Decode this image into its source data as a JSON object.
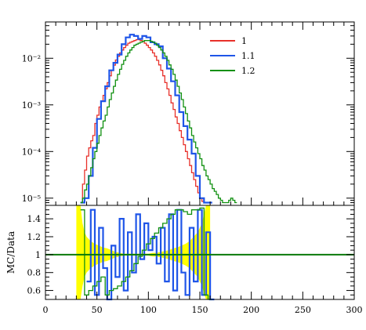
{
  "chart_data": [
    {
      "type": "line",
      "panel": "main",
      "title": "",
      "xlabel": "",
      "ylabel": "",
      "xlim": [
        0,
        300
      ],
      "ylim": [
        7e-06,
        0.06
      ],
      "yscale": "log",
      "yticks": [
        {
          "value": 1e-05,
          "label": "10⁻⁵"
        },
        {
          "value": 0.0001,
          "label": "10⁻⁴"
        },
        {
          "value": 0.001,
          "label": "10⁻³"
        },
        {
          "value": 0.01,
          "label": "10⁻²"
        }
      ],
      "legend": {
        "position": "top-right"
      },
      "series": [
        {
          "name": "1",
          "color": "#e8302a",
          "x": [
            34,
            36,
            38,
            40,
            42,
            44,
            46,
            48,
            50,
            52,
            54,
            56,
            58,
            60,
            62,
            64,
            66,
            68,
            70,
            72,
            74,
            76,
            78,
            80,
            82,
            84,
            86,
            88,
            90,
            92,
            94,
            96,
            98,
            100,
            102,
            104,
            106,
            108,
            110,
            112,
            114,
            116,
            118,
            120,
            122,
            124,
            126,
            128,
            130,
            132,
            134,
            136,
            138,
            140,
            142,
            144,
            146,
            148,
            150,
            152,
            154
          ],
          "values": [
            8e-06,
            2e-05,
            4e-05,
            8e-05,
            0.00012,
            0.00017,
            0.00022,
            0.0004,
            0.0006,
            0.0009,
            0.0012,
            0.0016,
            0.0022,
            0.003,
            0.0042,
            0.0055,
            0.0071,
            0.0092,
            0.011,
            0.013,
            0.015,
            0.017,
            0.019,
            0.021,
            0.022,
            0.023,
            0.024,
            0.025,
            0.025,
            0.024,
            0.023,
            0.021,
            0.019,
            0.017,
            0.015,
            0.013,
            0.011,
            0.009,
            0.0072,
            0.0055,
            0.0042,
            0.003,
            0.0022,
            0.0016,
            0.0011,
            0.0008,
            0.00055,
            0.0004,
            0.00028,
            0.0002,
            0.00014,
            0.0001,
            7e-05,
            5e-05,
            3.5e-05,
            2.5e-05,
            1.8e-05,
            1.3e-05,
            1e-05,
            8.5e-06,
            8e-06
          ]
        },
        {
          "name": "1.1",
          "color": "#1f55e8",
          "x": [
            34,
            38,
            42,
            46,
            50,
            54,
            58,
            62,
            66,
            70,
            74,
            78,
            82,
            86,
            90,
            94,
            98,
            102,
            106,
            110,
            114,
            118,
            122,
            126,
            130,
            134,
            138,
            142,
            146,
            150,
            154,
            158
          ],
          "values": [
            8e-06,
            1e-05,
            3e-05,
            0.00012,
            0.0005,
            0.0012,
            0.0025,
            0.0055,
            0.008,
            0.012,
            0.02,
            0.028,
            0.032,
            0.03,
            0.026,
            0.03,
            0.028,
            0.022,
            0.02,
            0.018,
            0.01,
            0.006,
            0.0032,
            0.0016,
            0.0007,
            0.00035,
            0.00018,
            9e-05,
            3e-05,
            1e-05,
            8e-06,
            8e-06
          ]
        },
        {
          "name": "1.2",
          "color": "#109010",
          "x": [
            34,
            36,
            38,
            40,
            42,
            44,
            46,
            48,
            50,
            52,
            54,
            56,
            58,
            60,
            62,
            64,
            66,
            68,
            70,
            72,
            74,
            76,
            78,
            80,
            82,
            84,
            86,
            88,
            90,
            92,
            94,
            96,
            98,
            100,
            102,
            104,
            106,
            108,
            110,
            112,
            114,
            116,
            118,
            120,
            122,
            124,
            126,
            128,
            130,
            132,
            134,
            136,
            138,
            140,
            142,
            144,
            146,
            148,
            150,
            152,
            154,
            156,
            158,
            160,
            162,
            164,
            166,
            168,
            170,
            172,
            174,
            176,
            178,
            180,
            182,
            184
          ],
          "values": [
            8e-06,
            1e-05,
            1.5e-05,
            2e-05,
            3e-05,
            4.5e-05,
            7e-05,
            0.0001,
            0.00015,
            0.00022,
            0.00032,
            0.00045,
            0.0006,
            0.0009,
            0.0013,
            0.0018,
            0.0025,
            0.0034,
            0.0045,
            0.0058,
            0.0074,
            0.009,
            0.011,
            0.013,
            0.015,
            0.017,
            0.019,
            0.02,
            0.021,
            0.022,
            0.023,
            0.024,
            0.024,
            0.024,
            0.023,
            0.022,
            0.021,
            0.019,
            0.017,
            0.015,
            0.013,
            0.011,
            0.009,
            0.0072,
            0.0058,
            0.0045,
            0.0034,
            0.0025,
            0.0018,
            0.0013,
            0.0009,
            0.00065,
            0.00045,
            0.00032,
            0.00022,
            0.00016,
            0.00012,
            9e-05,
            7e-05,
            5e-05,
            4e-05,
            3e-05,
            2.5e-05,
            2e-05,
            1.6e-05,
            1.4e-05,
            1.2e-05,
            1e-05,
            9e-06,
            8e-06,
            8e-06,
            8e-06,
            9e-06,
            1e-05,
            9e-06,
            8e-06
          ]
        }
      ]
    },
    {
      "type": "line",
      "panel": "ratio",
      "title": "",
      "xlabel": "",
      "ylabel": "MC/Data",
      "xlim": [
        0,
        300
      ],
      "ylim": [
        0.5,
        1.55
      ],
      "xticks": [
        0,
        50,
        100,
        150,
        200,
        250,
        300
      ],
      "yticks": [
        0.6,
        0.8,
        1,
        1.2,
        1.4
      ],
      "reference_line": 1,
      "uncertainty_band": {
        "color": "#ffff00",
        "x": [
          30,
          34,
          36,
          38,
          40,
          44,
          48,
          52,
          56,
          60,
          64,
          68,
          72,
          76,
          80,
          84,
          88,
          92,
          96,
          100,
          104,
          108,
          112,
          116,
          120,
          124,
          128,
          132,
          136,
          140,
          144,
          148,
          152,
          156,
          160
        ],
        "lower": [
          0.5,
          0.5,
          0.65,
          0.75,
          0.8,
          0.85,
          0.88,
          0.9,
          0.92,
          0.93,
          0.95,
          0.97,
          0.98,
          0.99,
          0.99,
          0.99,
          0.99,
          0.99,
          0.99,
          0.99,
          0.98,
          0.98,
          0.97,
          0.96,
          0.95,
          0.93,
          0.92,
          0.9,
          0.88,
          0.85,
          0.8,
          0.75,
          0.65,
          0.5,
          0.5
        ],
        "upper": [
          1.55,
          1.55,
          1.35,
          1.25,
          1.2,
          1.15,
          1.12,
          1.1,
          1.08,
          1.07,
          1.05,
          1.03,
          1.02,
          1.01,
          1.01,
          1.01,
          1.01,
          1.01,
          1.01,
          1.01,
          1.02,
          1.02,
          1.03,
          1.04,
          1.05,
          1.07,
          1.08,
          1.1,
          1.12,
          1.15,
          1.2,
          1.25,
          1.35,
          1.55,
          1.55
        ]
      },
      "series": [
        {
          "name": "1.1",
          "color": "#1f55e8",
          "x": [
            40,
            44,
            48,
            52,
            56,
            60,
            64,
            68,
            72,
            76,
            80,
            84,
            88,
            92,
            96,
            100,
            104,
            108,
            112,
            116,
            120,
            124,
            128,
            132,
            136,
            140,
            144,
            148,
            152,
            156,
            160
          ],
          "values": [
            0.7,
            1.5,
            0.55,
            1.3,
            0.85,
            0.5,
            1.1,
            0.75,
            1.4,
            0.6,
            1.25,
            0.8,
            1.45,
            0.95,
            1.35,
            1.05,
            1.2,
            0.9,
            1.3,
            0.7,
            1.45,
            0.6,
            1.5,
            0.8,
            0.55,
            1.3,
            0.7,
            1.5,
            0.55,
            1.25,
            0.5
          ]
        },
        {
          "name": "1.2",
          "color": "#109010",
          "x": [
            34,
            38,
            42,
            46,
            50,
            54,
            58,
            62,
            66,
            70,
            74,
            78,
            82,
            86,
            90,
            94,
            98,
            102,
            106,
            110,
            114,
            118,
            122,
            126,
            130,
            134,
            138,
            142,
            146,
            150,
            154,
            158
          ],
          "values": [
            1.5,
            0.55,
            0.6,
            0.65,
            0.7,
            0.75,
            0.55,
            0.6,
            0.62,
            0.65,
            0.7,
            0.75,
            0.82,
            0.9,
            0.98,
            1.05,
            1.12,
            1.18,
            1.24,
            1.3,
            1.35,
            1.4,
            1.45,
            1.5,
            1.5,
            1.48,
            1.45,
            1.5,
            1.5,
            1.52,
            0.55,
            0.5
          ]
        }
      ]
    }
  ]
}
